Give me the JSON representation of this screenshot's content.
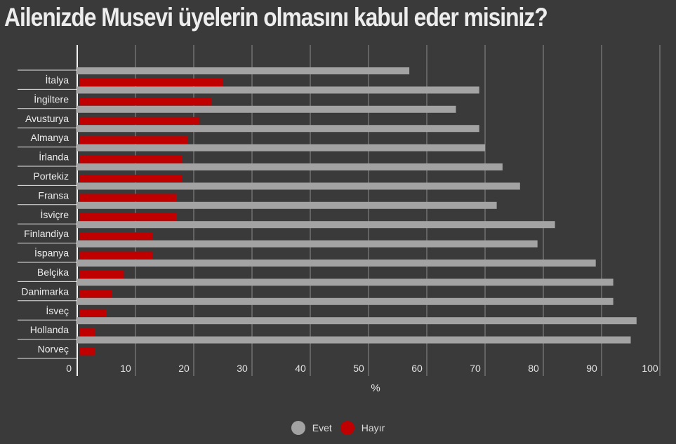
{
  "chart_data": {
    "type": "bar",
    "orientation": "horizontal",
    "title": "Ailenizde Musevi üyelerin olmasını kabul eder misiniz?",
    "xlabel": "%",
    "ylabel": "",
    "xlim": [
      0,
      100
    ],
    "xticks": [
      0,
      10,
      20,
      30,
      40,
      50,
      60,
      70,
      80,
      90,
      100
    ],
    "grid": true,
    "legend_position": "bottom-center",
    "categories": [
      "İtalya",
      "İngiltere",
      "Avusturya",
      "Almanya",
      "İrlanda",
      "Portekiz",
      "Fransa",
      "İsviçre",
      "Finlandiya",
      "İspanya",
      "Belçika",
      "Danimarka",
      "İsveç",
      "Hollanda",
      "Norveç"
    ],
    "series": [
      {
        "name": "Evet",
        "color": "#a3a3a3",
        "values": [
          57,
          69,
          65,
          69,
          70,
          73,
          76,
          72,
          82,
          79,
          89,
          92,
          92,
          96,
          95
        ]
      },
      {
        "name": "Hayır",
        "color": "#c00000",
        "values": [
          25,
          23,
          21,
          19,
          18,
          18,
          17,
          17,
          13,
          13,
          8,
          6,
          5,
          3,
          3
        ]
      }
    ]
  }
}
